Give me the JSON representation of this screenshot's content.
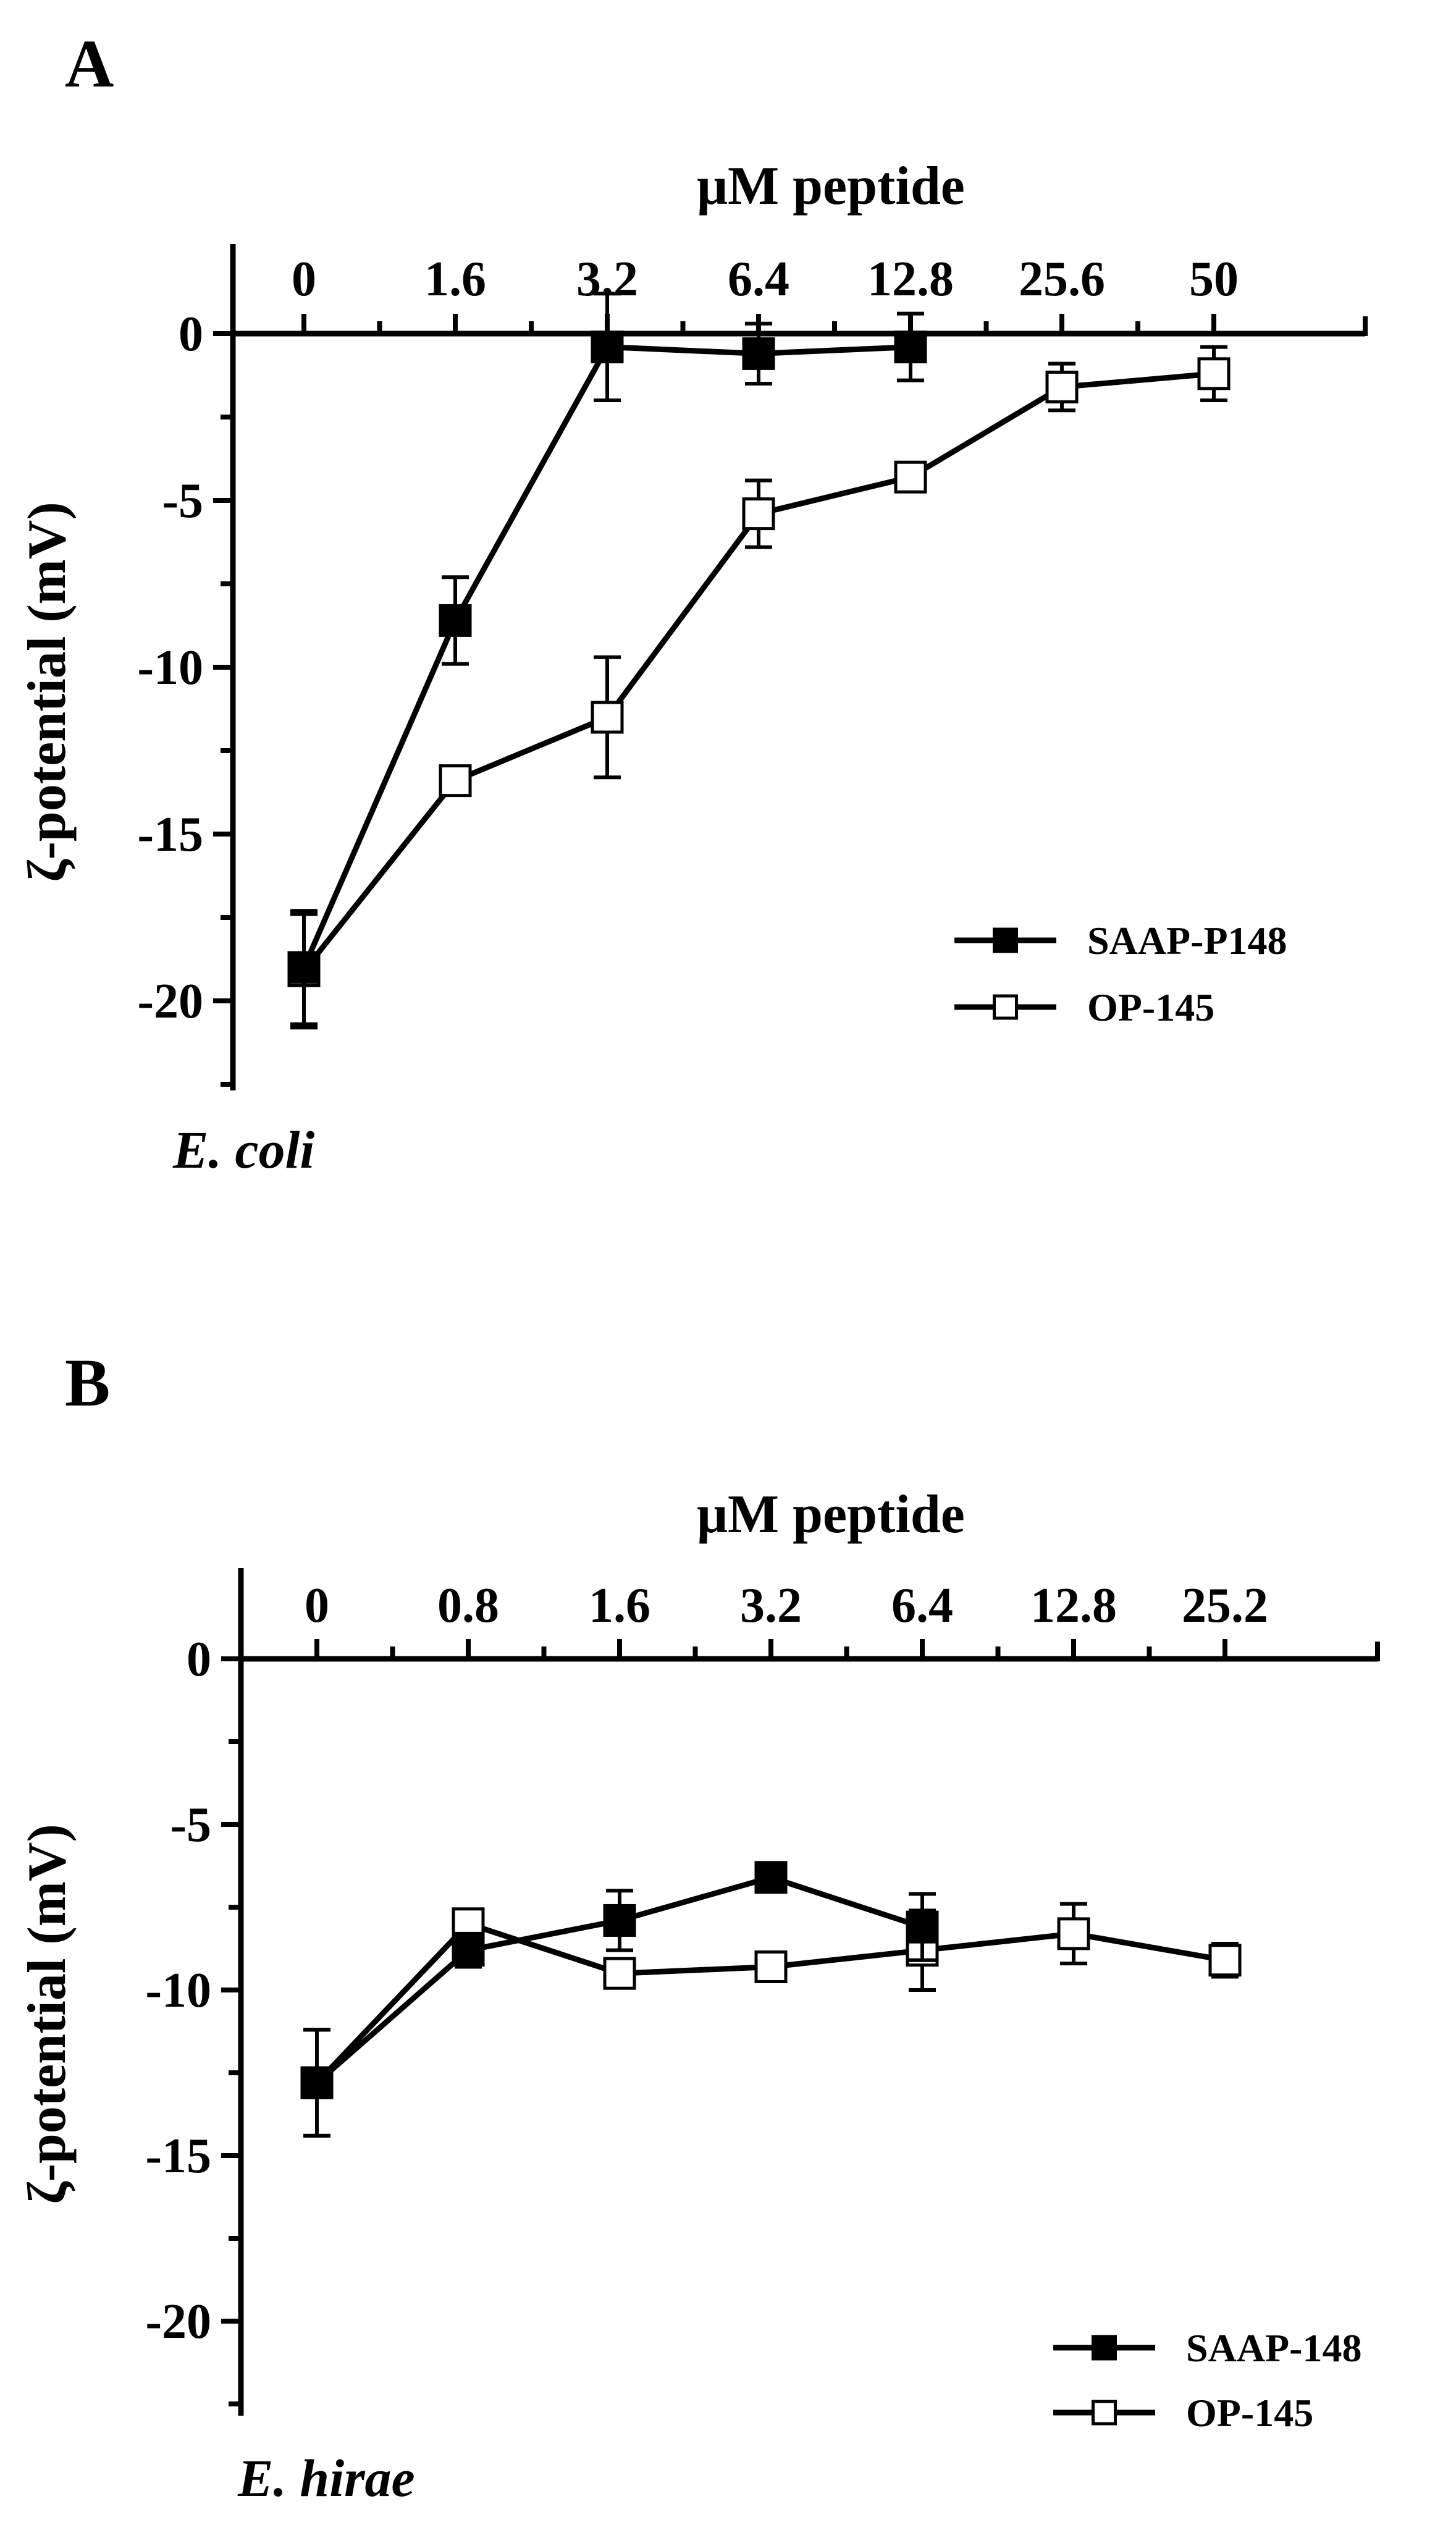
{
  "chart_data": [
    {
      "type": "line",
      "panel_label": "A",
      "organism_label": "E. coli",
      "xlabel": "μM peptide",
      "ylabel": "ζ-potential (mV)",
      "x_categories": [
        "0",
        "1.6",
        "3.2",
        "6.4",
        "12.8",
        "25.6",
        "50"
      ],
      "ylim": [
        -22.5,
        1.5
      ],
      "yticks": [
        0,
        -5,
        -10,
        -15,
        -20
      ],
      "grid": false,
      "legend_position": "bottom-right",
      "series": [
        {
          "name": "SAAP-P148",
          "marker": "filled-square",
          "x": [
            "0",
            "1.6",
            "3.2",
            "6.4",
            "12.8"
          ],
          "y": [
            -19.0,
            -8.6,
            -0.4,
            -0.6,
            -0.4
          ],
          "err": [
            1.7,
            1.3,
            1.6,
            0.9,
            1.0
          ]
        },
        {
          "name": "OP-145",
          "marker": "open-square",
          "x": [
            "0",
            "1.6",
            "3.2",
            "6.4",
            "12.8",
            "25.6",
            "50"
          ],
          "y": [
            -19.1,
            -13.4,
            -11.5,
            -5.4,
            -4.3,
            -1.6,
            -1.2
          ],
          "err": [
            1.7,
            0.2,
            1.8,
            1.0,
            0.3,
            0.7,
            0.8
          ]
        }
      ]
    },
    {
      "type": "line",
      "panel_label": "B",
      "organism_label": "E. hirae",
      "xlabel": "μM peptide",
      "ylabel": "ζ-potential (mV)",
      "x_categories": [
        "0",
        "0.8",
        "1.6",
        "3.2",
        "6.4",
        "12.8",
        "25.2"
      ],
      "ylim": [
        -22.5,
        1.5
      ],
      "yticks": [
        0,
        -5,
        -10,
        -15,
        -20
      ],
      "grid": false,
      "legend_position": "bottom-right",
      "series": [
        {
          "name": "SAAP-148",
          "marker": "filled-square",
          "x": [
            "0",
            "0.8",
            "1.6",
            "3.2",
            "6.4"
          ],
          "y": [
            -12.8,
            -8.8,
            -7.9,
            -6.6,
            -8.1
          ],
          "err": [
            1.6,
            0.5,
            0.9,
            0.2,
            1.0
          ]
        },
        {
          "name": "OP-145",
          "marker": "open-square",
          "x": [
            "0",
            "0.8",
            "1.6",
            "3.2",
            "6.4",
            "12.8",
            "25.2"
          ],
          "y": [
            -12.8,
            -8.0,
            -9.5,
            -9.3,
            -8.8,
            -8.3,
            -9.1
          ],
          "err": [
            1.6,
            0.3,
            0.4,
            0.3,
            1.2,
            0.9,
            0.5
          ]
        }
      ]
    }
  ]
}
